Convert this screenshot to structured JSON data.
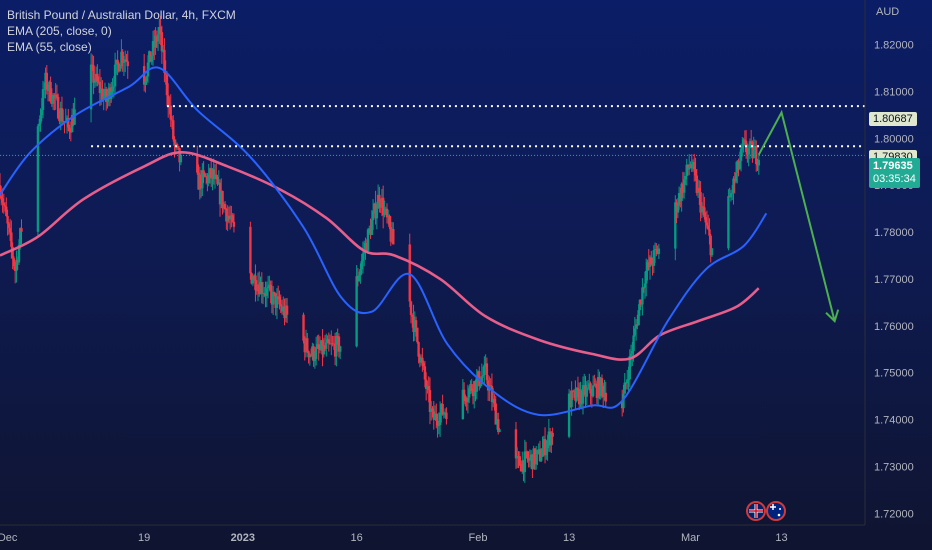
{
  "legend": {
    "title": "British Pound / Australian Dollar, 4h, FXCM",
    "ema1": "EMA (205, close, 0)",
    "ema2": "EMA (55, close)"
  },
  "axis": {
    "unit": "AUD",
    "y_ticks": [
      "1.82000",
      "1.81000",
      "1.80000",
      "1.79000",
      "1.78000",
      "1.77000",
      "1.76000",
      "1.75000",
      "1.74000",
      "1.73000",
      "1.72000"
    ],
    "x_ticks": [
      "Dec",
      "19",
      "2023",
      "16",
      "Feb",
      "13",
      "Mar",
      "13"
    ]
  },
  "price_tags": {
    "resistance": "1.80687",
    "level": "1.79830",
    "last_price": "1.79635",
    "countdown": "03:35:34"
  },
  "colors": {
    "up": "#089981",
    "down": "#f23645",
    "ema_long": "#e75e8b",
    "ema_short": "#2962ff",
    "projection": "#4caf50",
    "level_line": "#ffffff"
  },
  "chart_data": {
    "type": "candlestick",
    "title": "British Pound / Australian Dollar, 4h, FXCM",
    "ylabel": "AUD",
    "ylim": [
      1.7175,
      1.8295
    ],
    "x_range": [
      "2022-11-30",
      "2023-03-24"
    ],
    "grid": false,
    "close_path": [
      [
        "2022-11-30",
        1.79
      ],
      [
        "2022-12-02",
        1.772
      ],
      [
        "2022-12-04",
        1.793
      ],
      [
        "2022-12-06",
        1.812
      ],
      [
        "2022-12-09",
        1.802
      ],
      [
        "2022-12-12",
        1.814
      ],
      [
        "2022-12-14",
        1.808
      ],
      [
        "2022-12-16",
        1.818
      ],
      [
        "2022-12-19",
        1.813
      ],
      [
        "2022-12-21",
        1.823
      ],
      [
        "2022-12-23",
        1.798
      ],
      [
        "2022-12-25",
        1.79
      ],
      [
        "2022-12-28",
        1.792
      ],
      [
        "2023-01-02",
        1.771
      ],
      [
        "2023-01-06",
        1.764
      ],
      [
        "2023-01-10",
        1.754
      ],
      [
        "2023-01-14",
        1.756
      ],
      [
        "2023-01-17",
        1.776
      ],
      [
        "2023-01-19",
        1.788
      ],
      [
        "2023-01-23",
        1.765
      ],
      [
        "2023-01-26",
        1.74
      ],
      [
        "2023-01-30",
        1.745
      ],
      [
        "2023-02-02",
        1.75
      ],
      [
        "2023-02-05",
        1.73
      ],
      [
        "2023-02-09",
        1.732
      ],
      [
        "2023-02-13",
        1.744
      ],
      [
        "2023-02-17",
        1.747
      ],
      [
        "2023-02-20",
        1.743
      ],
      [
        "2023-02-23",
        1.771
      ],
      [
        "2023-02-26",
        1.78
      ],
      [
        "2023-03-01",
        1.795
      ],
      [
        "2023-03-04",
        1.775
      ],
      [
        "2023-03-06",
        1.786
      ],
      [
        "2023-03-08",
        1.798
      ],
      [
        "2023-03-10",
        1.7963
      ]
    ],
    "series": [
      {
        "name": "EMA (205, close, 0)",
        "color": "#e75e8b",
        "points": [
          [
            "2022-11-30",
            1.775
          ],
          [
            "2022-12-05",
            1.779
          ],
          [
            "2022-12-11",
            1.787
          ],
          [
            "2022-12-19",
            1.794
          ],
          [
            "2022-12-24",
            1.797
          ],
          [
            "2022-12-30",
            1.794
          ],
          [
            "2023-01-06",
            1.789
          ],
          [
            "2023-01-12",
            1.783
          ],
          [
            "2023-01-17",
            1.776
          ],
          [
            "2023-01-21",
            1.775
          ],
          [
            "2023-01-27",
            1.77
          ],
          [
            "2023-02-02",
            1.762
          ],
          [
            "2023-02-09",
            1.757
          ],
          [
            "2023-02-16",
            1.754
          ],
          [
            "2023-02-21",
            1.753
          ],
          [
            "2023-02-25",
            1.758
          ],
          [
            "2023-03-02",
            1.761
          ],
          [
            "2023-03-07",
            1.764
          ],
          [
            "2023-03-10",
            1.768
          ]
        ]
      },
      {
        "name": "EMA (55, close)",
        "color": "#2962ff",
        "points": [
          [
            "2022-11-30",
            1.788
          ],
          [
            "2022-12-04",
            1.797
          ],
          [
            "2022-12-10",
            1.805
          ],
          [
            "2022-12-17",
            1.811
          ],
          [
            "2022-12-21",
            1.815
          ],
          [
            "2022-12-26",
            1.806
          ],
          [
            "2023-01-02",
            1.796
          ],
          [
            "2023-01-09",
            1.781
          ],
          [
            "2023-01-14",
            1.766
          ],
          [
            "2023-01-18",
            1.763
          ],
          [
            "2023-01-23",
            1.771
          ],
          [
            "2023-01-28",
            1.756
          ],
          [
            "2023-02-03",
            1.746
          ],
          [
            "2023-02-09",
            1.741
          ],
          [
            "2023-02-16",
            1.743
          ],
          [
            "2023-02-20",
            1.744
          ],
          [
            "2023-02-26",
            1.761
          ],
          [
            "2023-03-03",
            1.772
          ],
          [
            "2023-03-08",
            1.777
          ],
          [
            "2023-03-11",
            1.784
          ]
        ]
      }
    ],
    "levels": [
      1.80687,
      1.7983
    ],
    "projection": [
      [
        "2023-03-10",
        1.7965
      ],
      [
        "2023-03-13",
        1.8055
      ],
      [
        "2023-03-20",
        1.761
      ]
    ]
  }
}
